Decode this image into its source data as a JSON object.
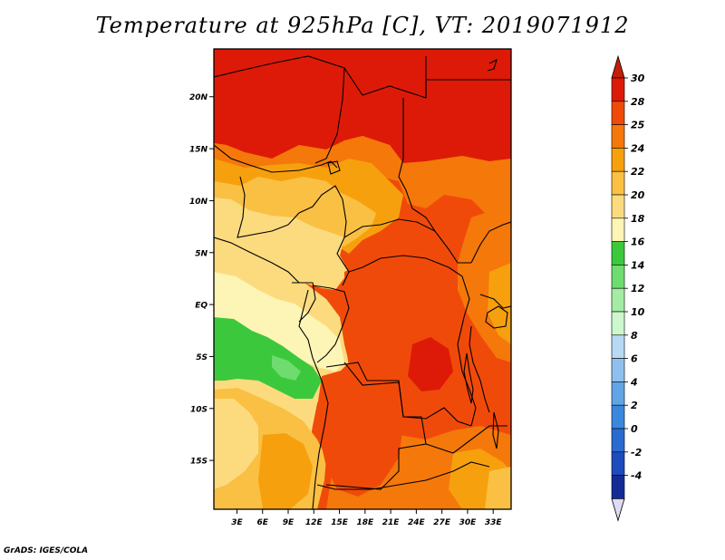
{
  "title": "Temperature at 925hPa [C], VT: 2019071912",
  "footer": "GrADS: IGES/COLA",
  "axes": {
    "lat_labels": [
      "20N",
      "15N",
      "10N",
      "5N",
      "EQ",
      "5S",
      "10S",
      "15S"
    ],
    "lat_values": [
      20,
      15,
      10,
      5,
      0,
      -5,
      -10,
      -15
    ],
    "lon_labels": [
      "3E",
      "6E",
      "9E",
      "12E",
      "15E",
      "18E",
      "21E",
      "24E",
      "27E",
      "30E",
      "33E"
    ],
    "lon_values": [
      3,
      6,
      9,
      12,
      15,
      18,
      21,
      24,
      27,
      30,
      33
    ],
    "lat_range": [
      -19.7,
      24.6
    ],
    "lon_range": [
      0.3,
      35.1
    ]
  },
  "colorbar": {
    "levels": [
      "30",
      "28",
      "25",
      "24",
      "22",
      "20",
      "18",
      "16",
      "14",
      "12",
      "10",
      "8",
      "6",
      "4",
      "2",
      "0",
      "-2",
      "-4"
    ],
    "colors": [
      "#dd1a08",
      "#f04a0a",
      "#f5780a",
      "#f7a00e",
      "#fac043",
      "#fcdb7f",
      "#fdf5b5",
      "#3cc83c",
      "#6fdc6f",
      "#a4eca4",
      "#cdf7cd",
      "#b8d9f4",
      "#8ec0ee",
      "#62a5e6",
      "#3b87dd",
      "#2a6bd0",
      "#1c4cbd",
      "#142b95",
      "#0a1560"
    ],
    "over_color": "#c41e0a",
    "under_color": "#dcdcf5"
  },
  "palette": {
    "t30": "#dd1a08",
    "t28": "#f04a0a",
    "t25": "#f5780a",
    "t24": "#f7a00e",
    "t22": "#fac043",
    "t20": "#fcdb7f",
    "t18": "#fdf5b5",
    "t16": "#3cc83c"
  }
}
